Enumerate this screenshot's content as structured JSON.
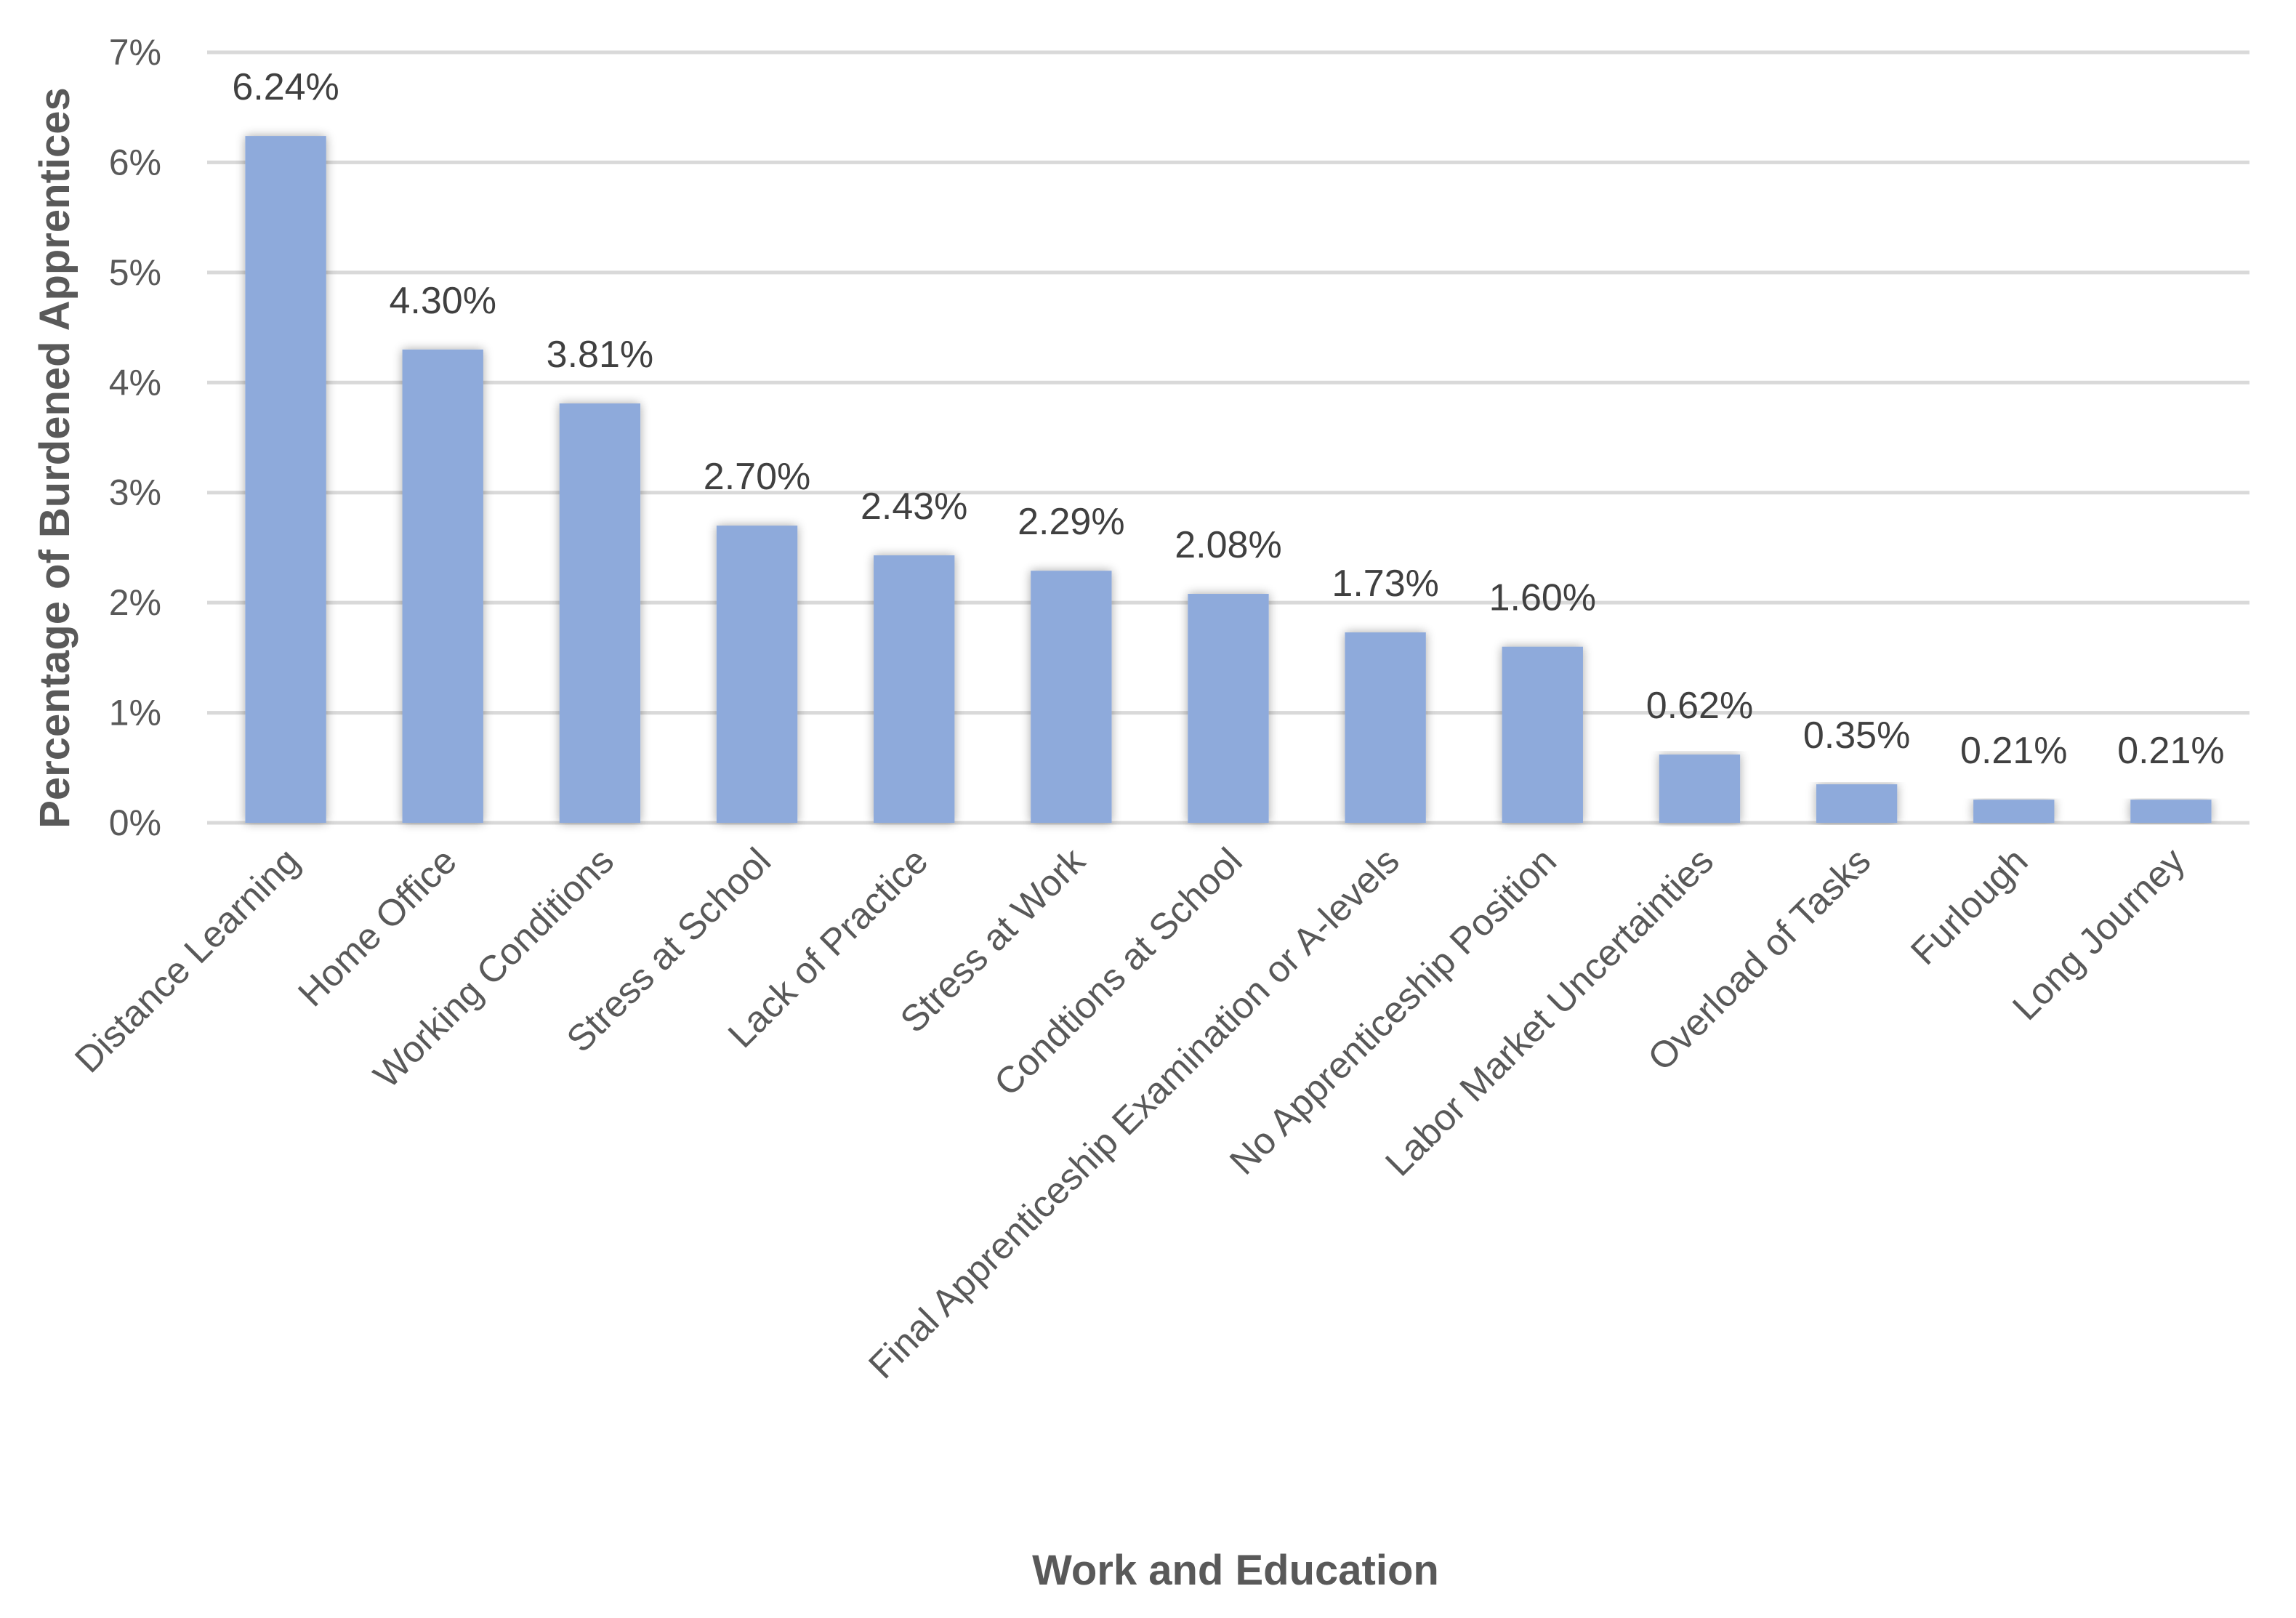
{
  "chart_data": {
    "type": "bar",
    "categories": [
      "Distance Learning",
      "Home Office",
      "Working Conditions",
      "Stress at School",
      "Lack of Practice",
      "Stress at Work",
      "Condtions at School",
      "Final Apprenticeship Examination or A-levels",
      "No Apprenticeship Position",
      "Labor Market Uncertainties",
      "Overload of Tasks",
      "Furlough",
      "Long Journey"
    ],
    "values": [
      6.24,
      4.3,
      3.81,
      2.7,
      2.43,
      2.29,
      2.08,
      1.73,
      1.6,
      0.62,
      0.35,
      0.21,
      0.21
    ],
    "data_labels": [
      "6.24%",
      "4.30%",
      "3.81%",
      "2.70%",
      "2.43%",
      "2.29%",
      "2.08%",
      "1.73%",
      "1.60%",
      "0.62%",
      "0.35%",
      "0.21%",
      "0.21%"
    ],
    "xlabel": "Work and Education",
    "ylabel": "Percentage of Burdened Apprentices",
    "ylim": [
      0,
      7
    ],
    "yticks": [
      "0%",
      "1%",
      "2%",
      "3%",
      "4%",
      "5%",
      "6%",
      "7%"
    ],
    "grid": true,
    "bar_color": "#8eaadb",
    "grid_color": "#d9d9d9"
  }
}
